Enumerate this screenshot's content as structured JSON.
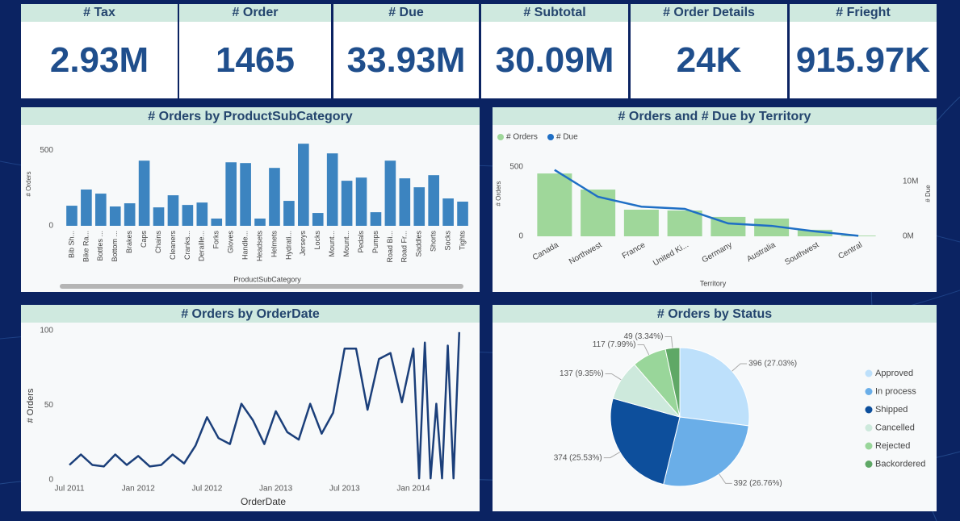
{
  "kpis": [
    {
      "title": "# Tax",
      "value": "2.93M"
    },
    {
      "title": "# Order",
      "value": "1465"
    },
    {
      "title": "# Due",
      "value": "33.93M"
    },
    {
      "title": "# Subtotal",
      "value": "30.09M"
    },
    {
      "title": "# Order Details",
      "value": "24K"
    },
    {
      "title": "# Frieght",
      "value": "915.97K"
    }
  ],
  "chart_data": [
    {
      "type": "bar",
      "title": "# Orders by ProductSubCategory",
      "xlabel": "ProductSubCategory",
      "ylabel": "# Orders",
      "color": "#3c84c0",
      "categories": [
        "Bib Sh...",
        "Bike Ra...",
        "Bottles ...",
        "Bottom ...",
        "Brakes",
        "Caps",
        "Chains",
        "Cleaners",
        "Cranks...",
        "Deraille...",
        "Forks",
        "Gloves",
        "Handle...",
        "Headsets",
        "Helmets",
        "Hydrati...",
        "Jerseys",
        "Locks",
        "Mount...",
        "Mount...",
        "Pedals",
        "Pumps",
        "Road Bi...",
        "Road Fr...",
        "Saddles",
        "Shorts",
        "Socks",
        "Tights"
      ],
      "values": [
        133,
        240,
        213,
        128,
        149,
        431,
        122,
        202,
        138,
        154,
        48,
        420,
        415,
        48,
        383,
        165,
        543,
        85,
        479,
        298,
        319,
        90,
        431,
        314,
        255,
        335,
        181,
        160
      ],
      "ylim": [
        0,
        560
      ],
      "yticks": [
        0,
        500
      ]
    },
    {
      "type": "combo",
      "title": "# Orders and # Due by Territory",
      "xlabel": "Territory",
      "ylabel": "# Orders",
      "y2label": "# Due",
      "legend": "top-left",
      "categories": [
        "Canada",
        "Northwest",
        "France",
        "United Ki...",
        "Germany",
        "Australia",
        "Southwest",
        "Central"
      ],
      "series": [
        {
          "name": "# Orders",
          "color": "#9fd79a",
          "mark": "bar",
          "values": [
            453,
            337,
            192,
            186,
            140,
            128,
            47,
            5
          ]
        },
        {
          "name": "# Due",
          "color": "#1f6fc5",
          "mark": "line",
          "axis": "y2",
          "values": [
            12100000,
            7200000,
            5400000,
            5000000,
            2350000,
            1900000,
            900000,
            100000
          ]
        }
      ],
      "ylim": [
        0,
        570
      ],
      "yticks": [
        0,
        500
      ],
      "y2lim": [
        0,
        14400000
      ],
      "y2ticks": [
        {
          "value": 0,
          "label": "0M"
        },
        {
          "value": 10000000,
          "label": "10M"
        }
      ]
    },
    {
      "type": "line",
      "title": "# Orders by OrderDate",
      "xlabel": "OrderDate",
      "ylabel": "# Orders",
      "color": "#1b3f7a",
      "x": [
        0,
        1,
        2,
        3,
        4,
        5,
        6,
        7,
        8,
        9,
        10,
        11,
        12,
        13,
        14,
        15,
        16,
        17,
        18,
        19,
        20,
        21,
        22,
        23,
        24,
        25,
        26,
        27,
        28,
        29,
        30,
        30.5,
        31,
        31.5,
        32,
        32.5,
        33,
        33.5,
        34
      ],
      "values": [
        10,
        17,
        10,
        9,
        17,
        10,
        16,
        9,
        10,
        17,
        11,
        23,
        42,
        28,
        24,
        51,
        40,
        24,
        46,
        32,
        27,
        51,
        31,
        45,
        88,
        88,
        47,
        81,
        85,
        52,
        88,
        1,
        92,
        1,
        51,
        1,
        90,
        1,
        99
      ],
      "xlim": [
        -2,
        35
      ],
      "xticks": [
        {
          "value": 0,
          "label": "Jul 2011"
        },
        {
          "value": 6,
          "label": "Jan 2012"
        },
        {
          "value": 12,
          "label": "Jul 2012"
        },
        {
          "value": 18,
          "label": "Jan 2013"
        },
        {
          "value": 24,
          "label": "Jul 2013"
        },
        {
          "value": 30,
          "label": "Jan 2014"
        }
      ],
      "ylim": [
        0,
        100
      ],
      "yticks": [
        0,
        50,
        100
      ]
    },
    {
      "type": "pie",
      "title": "# Orders by Status",
      "legend": "right",
      "categories": [
        "Approved",
        "In process",
        "Shipped",
        "Cancelled",
        "Rejected",
        "Backordered"
      ],
      "values": [
        396,
        392,
        374,
        137,
        117,
        49
      ],
      "value_labels": [
        "396 (27.03%)",
        "392 (26.76%)",
        "374 (25.53%)",
        "137 (9.35%)",
        "117 (7.99%)",
        "49 (3.34%)"
      ],
      "colors": [
        "#bde0fb",
        "#6aaee8",
        "#0d4f9c",
        "#cde9dc",
        "#99d69a",
        "#5fa866"
      ]
    }
  ]
}
